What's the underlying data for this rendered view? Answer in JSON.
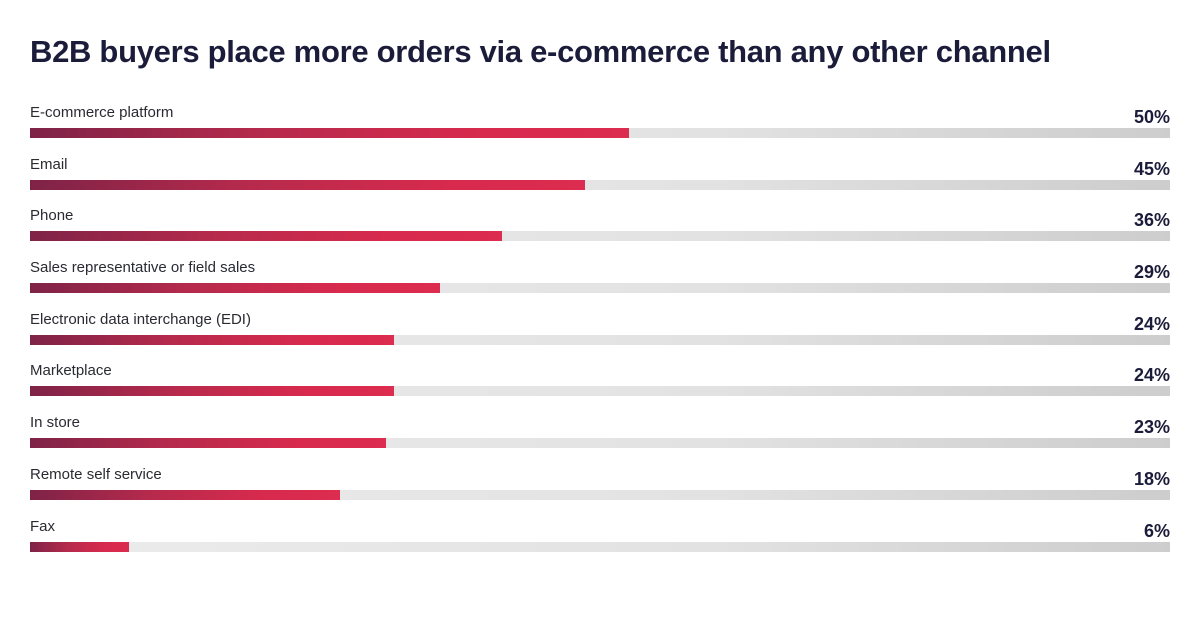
{
  "title": "B2B buyers place more orders via e-commerce than any other channel",
  "colors": {
    "bar_start": "#7e2347",
    "bar_end": "#dc2c4f",
    "track": "#e2e2e2",
    "title": "#1b1c3a"
  },
  "chart_data": {
    "type": "bar",
    "orientation": "horizontal",
    "title": "B2B buyers place more orders via e-commerce than any other channel",
    "xlabel": "",
    "ylabel": "",
    "grid": false,
    "legend": null,
    "categories": [
      "E-commerce platform",
      "Email",
      "Phone",
      "Sales representative or field sales",
      "Electronic data interchange (EDI)",
      "Marketplace",
      "In store",
      "Remote self service",
      "Fax"
    ],
    "values": [
      50,
      45,
      36,
      29,
      24,
      24,
      23,
      18,
      6
    ],
    "value_labels": [
      "50%",
      "45%",
      "36%",
      "29%",
      "24%",
      "24%",
      "23%",
      "18%",
      "6%"
    ],
    "unit": "%"
  },
  "rows": [
    {
      "label": "E-commerce platform",
      "value": "50%",
      "fill_pct": "52.5%"
    },
    {
      "label": "Email",
      "value": "45%",
      "fill_pct": "48.7%"
    },
    {
      "label": "Phone",
      "value": "36%",
      "fill_pct": "41.4%"
    },
    {
      "label": "Sales representative or field sales",
      "value": "29%",
      "fill_pct": "36.0%"
    },
    {
      "label": "Electronic data interchange (EDI)",
      "value": "24%",
      "fill_pct": "31.9%"
    },
    {
      "label": "Marketplace",
      "value": "24%",
      "fill_pct": "31.9%"
    },
    {
      "label": "In store",
      "value": "23%",
      "fill_pct": "31.2%"
    },
    {
      "label": "Remote self service",
      "value": "18%",
      "fill_pct": "27.2%"
    },
    {
      "label": "Fax",
      "value": "6%",
      "fill_pct": "8.7%"
    }
  ]
}
